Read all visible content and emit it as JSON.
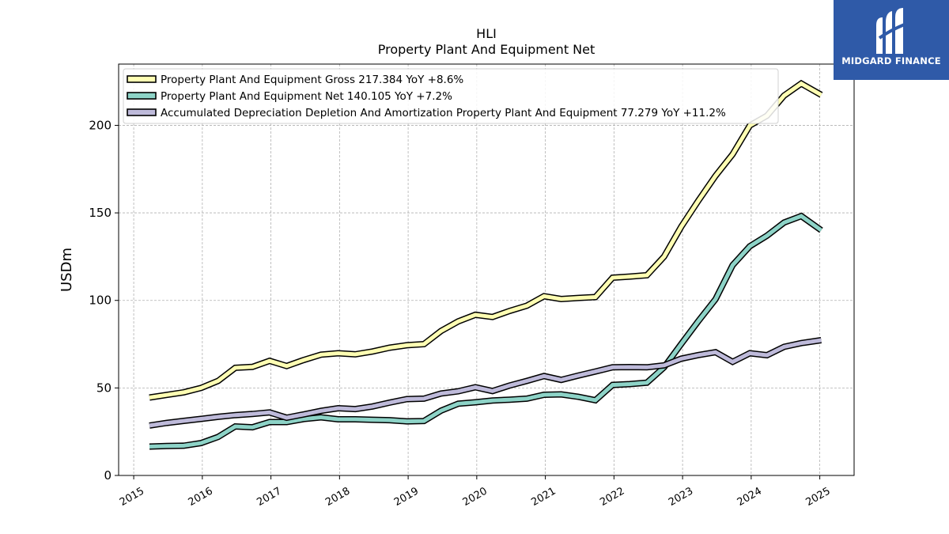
{
  "brand": {
    "name": "MIDGARD FINANCE",
    "logo_icon": "midgard-m-logo-icon",
    "background_color": "#2f5aa8"
  },
  "chart_data": {
    "type": "line",
    "title": "HLI",
    "subtitle": "Property Plant And Equipment Net",
    "xlabel": "",
    "ylabel": "USDm",
    "xlim": [
      2014.78,
      2025.5
    ],
    "ylim": [
      0,
      235
    ],
    "x_ticks": [
      "2015",
      "2016",
      "2017",
      "2018",
      "2019",
      "2020",
      "2021",
      "2022",
      "2023",
      "2024",
      "2025"
    ],
    "y_ticks": [
      0,
      50,
      100,
      150,
      200
    ],
    "grid": true,
    "legend_position": "top-left",
    "x": [
      2015.23,
      2015.48,
      2015.73,
      2015.98,
      2016.23,
      2016.48,
      2016.73,
      2016.98,
      2017.23,
      2017.48,
      2017.73,
      2017.98,
      2018.23,
      2018.48,
      2018.73,
      2018.98,
      2019.23,
      2019.48,
      2019.73,
      2019.98,
      2020.23,
      2020.48,
      2020.73,
      2020.98,
      2021.23,
      2021.48,
      2021.73,
      2021.98,
      2022.23,
      2022.48,
      2022.73,
      2022.98,
      2023.23,
      2023.48,
      2023.73,
      2023.98,
      2024.23,
      2024.48,
      2024.73,
      2025.02
    ],
    "series": [
      {
        "name": "Property Plant And Equipment Gross",
        "legend_label": "Property Plant And Equipment Gross  217.384 YoY +8.6%",
        "color": "#ffffb3",
        "values": [
          44.5,
          46,
          47.5,
          50,
          54,
          61.5,
          62,
          65.5,
          62.5,
          66,
          69,
          69.8,
          69.2,
          70.8,
          73,
          74.4,
          75,
          82.5,
          88,
          91.8,
          90.5,
          94,
          97,
          102.4,
          100.8,
          101.4,
          101.9,
          113,
          113.6,
          114.4,
          125,
          142.1,
          157,
          171.2,
          183.5,
          199.9,
          205.5,
          217,
          223.9,
          217.4
        ]
      },
      {
        "name": "Property Plant And Equipment Net",
        "legend_label": "Property Plant And Equipment Net  140.105 YoY +7.2%",
        "color": "#8dd3c7",
        "values": [
          16.5,
          16.8,
          17,
          18.5,
          22,
          28,
          27.5,
          30.5,
          30.5,
          32.2,
          33.2,
          32.1,
          32.1,
          31.8,
          31.6,
          30.9,
          31.1,
          37,
          41,
          41.8,
          42.8,
          43.3,
          43.9,
          46.1,
          46.3,
          44.9,
          43,
          51.7,
          52.2,
          53,
          61.8,
          75.1,
          88.2,
          100.7,
          120.1,
          130.9,
          137,
          144.5,
          148.2,
          140.1
        ]
      },
      {
        "name": "Accumulated Depreciation Depletion And Amortization Property Plant And Equipment",
        "legend_label": "Accumulated Depreciation Depletion And Amortization Property Plant And Equipment  77.279 YoY +11.2%",
        "color": "#bebada",
        "values": [
          28.5,
          30,
          31.2,
          32.3,
          33.5,
          34.5,
          35.1,
          36,
          33,
          34.9,
          36.9,
          38.4,
          37.9,
          39.4,
          41.6,
          43.6,
          43.9,
          46.8,
          48.1,
          50.4,
          48.2,
          51.4,
          54,
          56.8,
          54.6,
          57.1,
          59.4,
          61.8,
          61.9,
          61.8,
          62.9,
          66.7,
          68.8,
          70.4,
          64.9,
          69.8,
          68.7,
          73.5,
          75.6,
          77.3
        ]
      }
    ]
  }
}
